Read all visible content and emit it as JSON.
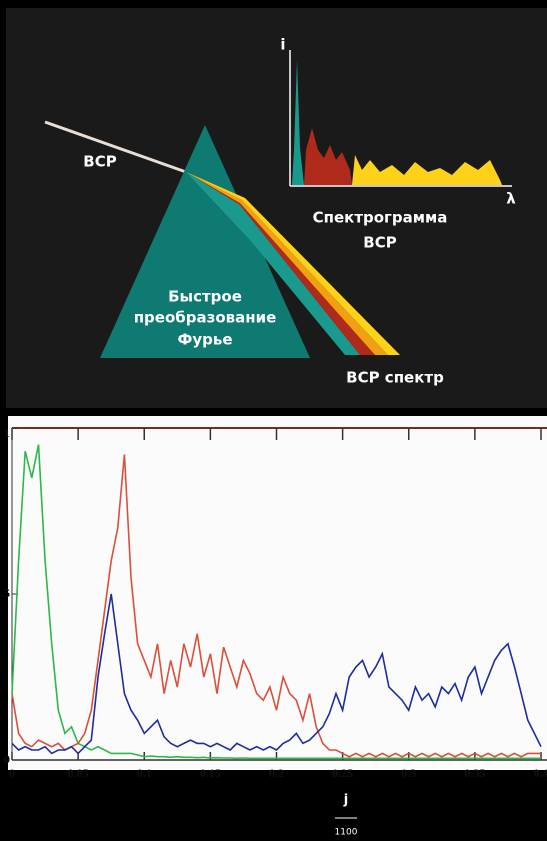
{
  "diagram": {
    "input_label": "ВСР",
    "prism_label": [
      "Быстрое",
      "преобразование",
      "Фурье"
    ],
    "output_label": "ВСР спектр",
    "inset_y_label": "i",
    "inset_x_label": "λ",
    "inset_caption": [
      "Спектрограмма",
      "ВСР"
    ]
  },
  "chart_data": {
    "type": "line",
    "x_label": "j",
    "x_label_sub": "1100",
    "x": [
      0,
      0.005,
      0.01,
      0.015,
      0.02,
      0.025,
      0.03,
      0.035,
      0.04,
      0.045,
      0.05,
      0.055,
      0.06,
      0.065,
      0.07,
      0.075,
      0.08,
      0.085,
      0.09,
      0.095,
      0.1,
      0.105,
      0.11,
      0.115,
      0.12,
      0.125,
      0.13,
      0.135,
      0.14,
      0.145,
      0.15,
      0.155,
      0.16,
      0.165,
      0.17,
      0.175,
      0.18,
      0.185,
      0.19,
      0.195,
      0.2,
      0.205,
      0.21,
      0.215,
      0.22,
      0.225,
      0.23,
      0.235,
      0.24,
      0.245,
      0.25,
      0.255,
      0.26,
      0.265,
      0.27,
      0.275,
      0.28,
      0.285,
      0.29,
      0.295,
      0.3,
      0.305,
      0.31,
      0.315,
      0.32,
      0.325,
      0.33,
      0.335,
      0.34,
      0.345,
      0.35,
      0.355,
      0.36,
      0.365,
      0.37,
      0.375,
      0.38,
      0.385,
      0.39,
      0.395,
      0.4
    ],
    "series": [
      {
        "color": "#2db84a",
        "values": [
          0.2,
          0.6,
          0.93,
          0.85,
          0.95,
          0.6,
          0.35,
          0.15,
          0.08,
          0.1,
          0.05,
          0.04,
          0.03,
          0.04,
          0.03,
          0.02,
          0.02,
          0.02,
          0.02,
          0.015,
          0.01,
          0.012,
          0.01,
          0.01,
          0.008,
          0.01,
          0.008,
          0.008,
          0.007,
          0.008,
          0.006,
          0.007,
          0.006,
          0.006,
          0.005,
          0.006,
          0.005,
          0.005,
          0.005,
          0.005,
          0.005,
          0.005,
          0.005,
          0.005,
          0.005,
          0.005,
          0.005,
          0.005,
          0.005,
          0.005,
          0.005,
          0.005,
          0.005,
          0.005,
          0.005,
          0.005,
          0.005,
          0.005,
          0.005,
          0.005,
          0.005,
          0.005,
          0.005,
          0.005,
          0.005,
          0.005,
          0.005,
          0.005,
          0.005,
          0.005,
          0.005,
          0.005,
          0.005,
          0.005,
          0.005,
          0.005,
          0.005,
          0.005,
          0.005,
          0.005,
          0.005
        ]
      },
      {
        "color": "#d9503a",
        "values": [
          0.2,
          0.08,
          0.05,
          0.04,
          0.06,
          0.05,
          0.04,
          0.05,
          0.03,
          0.04,
          0.05,
          0.08,
          0.15,
          0.3,
          0.45,
          0.6,
          0.7,
          0.92,
          0.55,
          0.35,
          0.3,
          0.25,
          0.35,
          0.2,
          0.3,
          0.22,
          0.35,
          0.28,
          0.38,
          0.25,
          0.32,
          0.2,
          0.34,
          0.28,
          0.22,
          0.3,
          0.26,
          0.2,
          0.18,
          0.22,
          0.15,
          0.25,
          0.2,
          0.18,
          0.12,
          0.2,
          0.1,
          0.05,
          0.03,
          0.03,
          0.02,
          0.01,
          0.02,
          0.01,
          0.02,
          0.01,
          0.02,
          0.01,
          0.02,
          0.01,
          0.02,
          0.01,
          0.02,
          0.01,
          0.02,
          0.01,
          0.02,
          0.01,
          0.02,
          0.01,
          0.02,
          0.01,
          0.02,
          0.01,
          0.02,
          0.01,
          0.02,
          0.01,
          0.02,
          0.02,
          0.02
        ]
      },
      {
        "color": "#1c2e9e",
        "values": [
          0.05,
          0.03,
          0.04,
          0.03,
          0.03,
          0.04,
          0.02,
          0.03,
          0.03,
          0.04,
          0.02,
          0.04,
          0.06,
          0.25,
          0.38,
          0.5,
          0.35,
          0.2,
          0.15,
          0.12,
          0.08,
          0.1,
          0.12,
          0.07,
          0.05,
          0.04,
          0.05,
          0.06,
          0.05,
          0.05,
          0.04,
          0.05,
          0.04,
          0.03,
          0.05,
          0.04,
          0.03,
          0.04,
          0.03,
          0.04,
          0.03,
          0.05,
          0.06,
          0.08,
          0.05,
          0.06,
          0.08,
          0.1,
          0.14,
          0.2,
          0.15,
          0.25,
          0.28,
          0.3,
          0.25,
          0.28,
          0.32,
          0.22,
          0.2,
          0.18,
          0.15,
          0.22,
          0.18,
          0.2,
          0.16,
          0.22,
          0.2,
          0.23,
          0.18,
          0.25,
          0.28,
          0.2,
          0.25,
          0.3,
          0.33,
          0.35,
          0.28,
          0.2,
          0.12,
          0.08,
          0.04
        ]
      }
    ],
    "xlim": [
      0,
      0.4
    ],
    "ylim": [
      0,
      1
    ],
    "xticks": [
      0,
      0.05,
      0.1,
      0.15,
      0.2,
      0.25,
      0.3,
      0.35,
      0.4
    ],
    "yticks": [
      0,
      {
        "value": 0.5,
        "label": ".5"
      },
      1
    ]
  }
}
